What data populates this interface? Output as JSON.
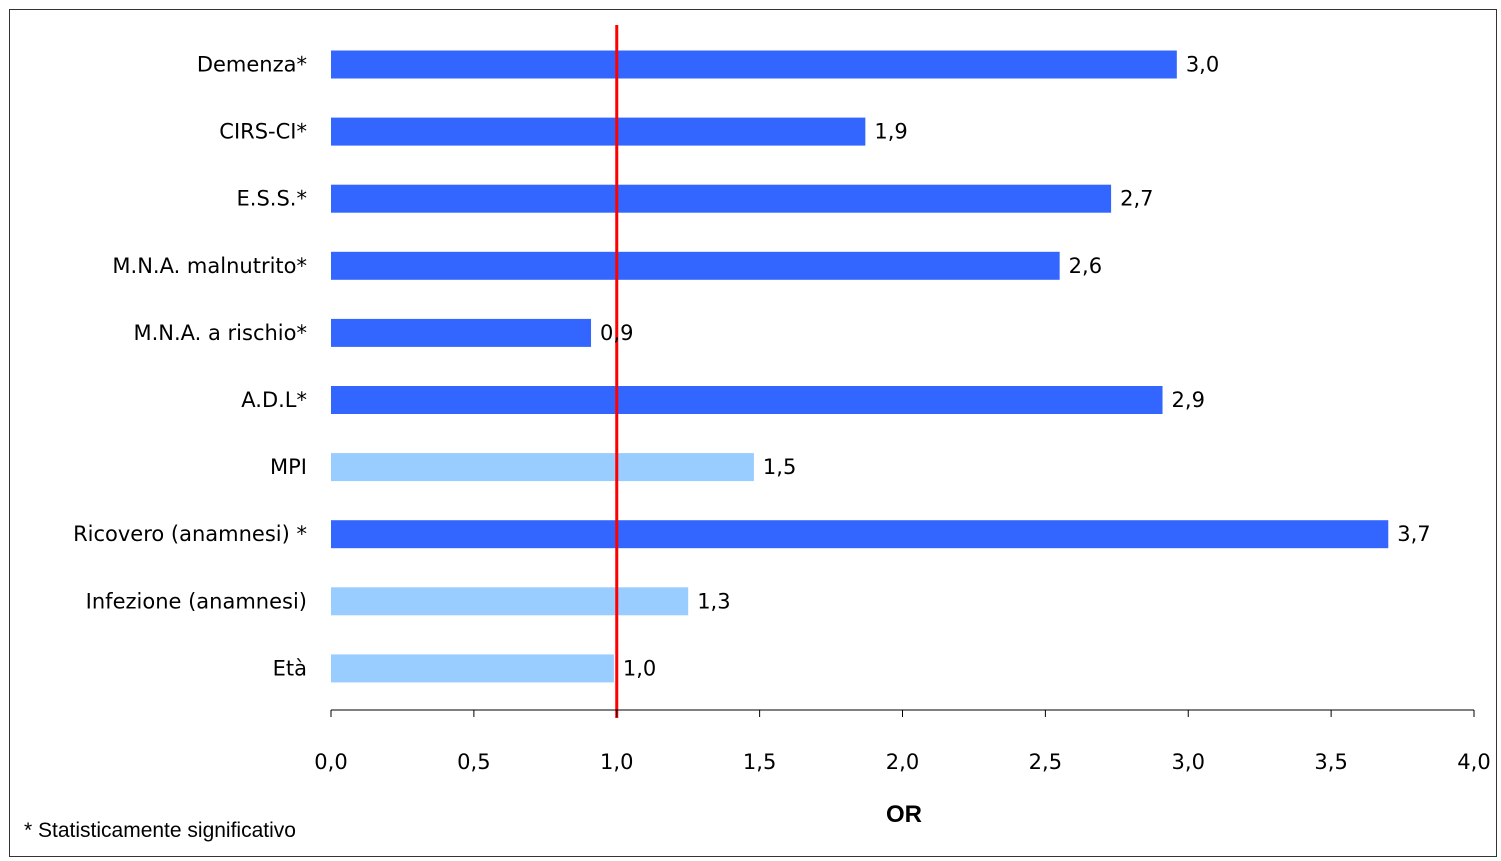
{
  "chart_data": {
    "type": "bar",
    "orientation": "horizontal",
    "categories": [
      "Demenza*",
      "CIRS-CI*",
      "E.S.S.*",
      "M.N.A. malnutrito*",
      "M.N.A. a rischio*",
      "A.D.L*",
      "MPI",
      "Ricovero (anamnesi) *",
      "Infezione (anamnesi)",
      "Età"
    ],
    "values": [
      2.96,
      1.87,
      2.73,
      2.55,
      0.91,
      2.91,
      1.48,
      3.7,
      1.25,
      0.99
    ],
    "data_labels": [
      "3,0",
      "1,9",
      "2,7",
      "2,6",
      "0,9",
      "2,9",
      "1,5",
      "3,7",
      "1,3",
      "1,0"
    ],
    "significant": [
      true,
      true,
      true,
      true,
      true,
      true,
      false,
      true,
      false,
      false
    ],
    "colors": {
      "significant": "#3366FF",
      "not_significant": "#99CCFF",
      "reference_line": "#FF0000",
      "axis": "#000000"
    },
    "reference_line": 1.0,
    "xlim": [
      0,
      4
    ],
    "xticks": [
      0,
      0.5,
      1,
      1.5,
      2,
      2.5,
      3,
      3.5,
      4
    ],
    "xtick_labels": [
      "0,0",
      "0,5",
      "1,0",
      "1,5",
      "2,0",
      "2,5",
      "3,0",
      "3,5",
      "4,0"
    ],
    "xlabel": "OR",
    "footnote": "* Statisticamente significativo",
    "grid": false,
    "legend": "none"
  }
}
